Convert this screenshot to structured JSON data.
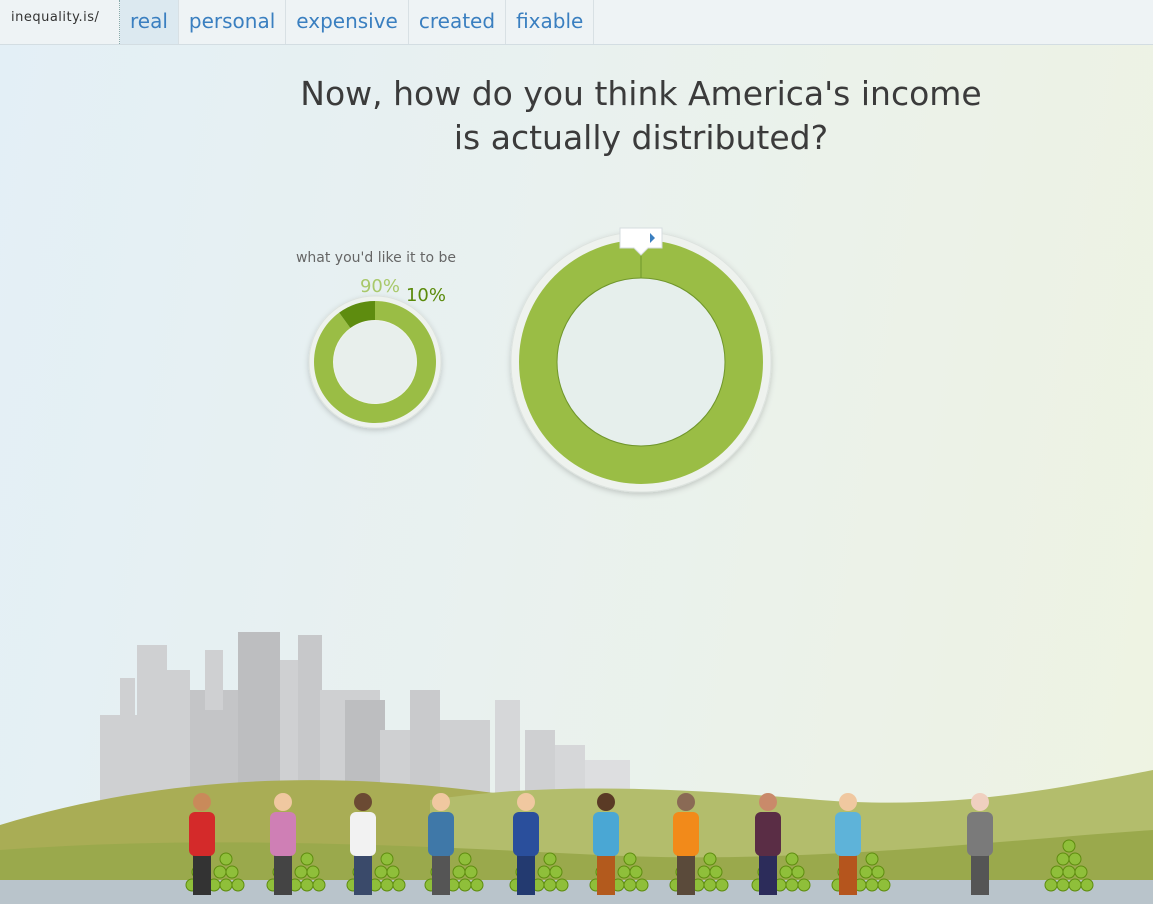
{
  "nav": {
    "brand": "inequality.is/",
    "items": [
      "real",
      "personal",
      "expensive",
      "created",
      "fixable"
    ]
  },
  "heading": [
    "Now, how do you think America's income",
    "is actually distributed?"
  ],
  "chart_data": {
    "type": "donut",
    "title": "what you'd like it to be",
    "values": [
      90,
      10
    ],
    "value_labels": [
      "90%",
      "10%"
    ],
    "colors": [
      "#9abd45",
      "#5e8c0f"
    ]
  }
}
